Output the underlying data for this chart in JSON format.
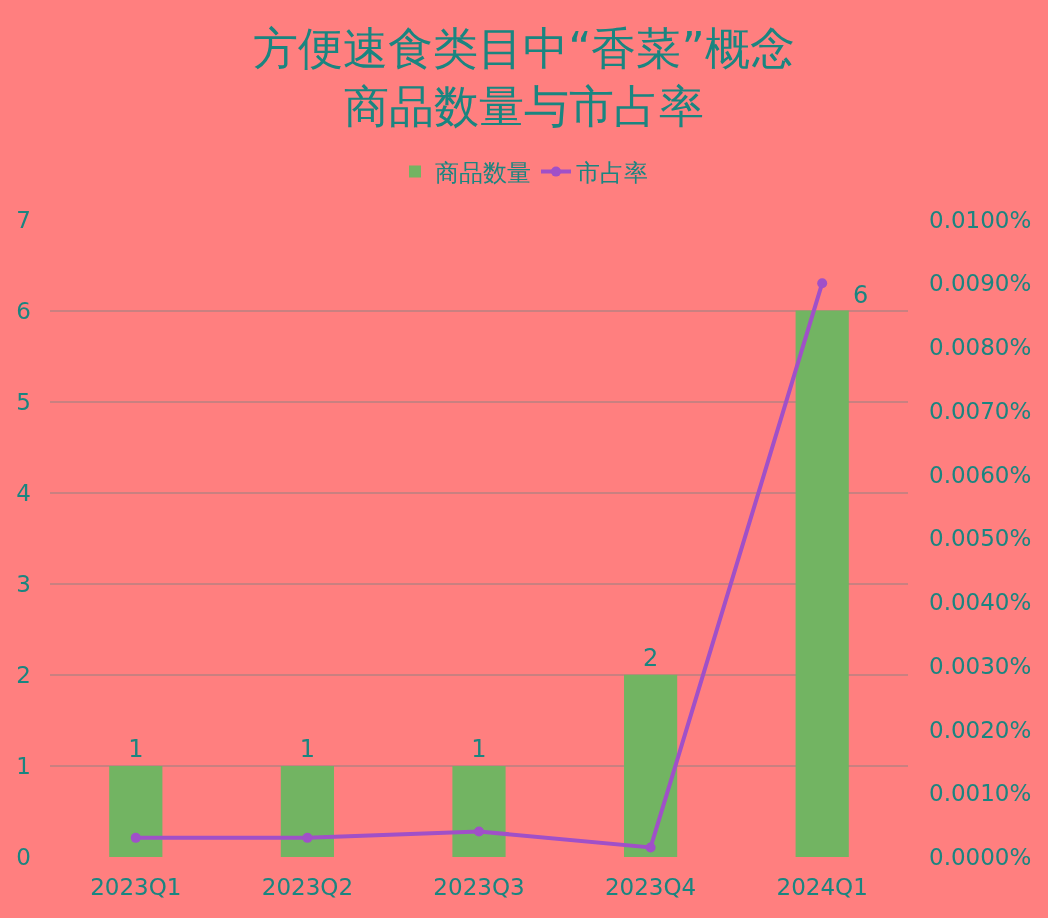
{
  "chart_data": {
    "type": "bar",
    "title": "方便速食类目中“香菜”概念",
    "subtitle": "商品数量与市占率",
    "categories": [
      "2023Q1",
      "2023Q2",
      "2023Q3",
      "2023Q4",
      "2024Q1"
    ],
    "series": [
      {
        "name": "商品数量",
        "color": "#72b462",
        "values": [
          1,
          1,
          1,
          2,
          6
        ],
        "value_labels": [
          "1",
          "1",
          "1",
          "2",
          "6"
        ]
      },
      {
        "name": "市占率",
        "type": "line",
        "axis": "y2",
        "color": "#a050c8",
        "values": [
          0.0003,
          0.0003,
          0.0004,
          0.00015,
          0.009
        ]
      }
    ],
    "ylim": [
      0,
      7
    ],
    "yticks": [
      0,
      1,
      2,
      3,
      4,
      5,
      6,
      7
    ],
    "y2lim": [
      0,
      0.01
    ],
    "y2ticks": [
      {
        "value": 0,
        "label": "0.0000%"
      },
      {
        "value": 0.001,
        "label": "0.0010%"
      },
      {
        "value": 0.002,
        "label": "0.0020%"
      },
      {
        "value": 0.003,
        "label": "0.0030%"
      },
      {
        "value": 0.004,
        "label": "0.0040%"
      },
      {
        "value": 0.005,
        "label": "0.0050%"
      },
      {
        "value": 0.006,
        "label": "0.0060%"
      },
      {
        "value": 0.007,
        "label": "0.0070%"
      },
      {
        "value": 0.008,
        "label": "0.0080%"
      },
      {
        "value": 0.009,
        "label": "0.0090%"
      },
      {
        "value": 0.01,
        "label": "0.0100%"
      }
    ],
    "grid": "y",
    "legend": "top",
    "marker": "circle"
  }
}
